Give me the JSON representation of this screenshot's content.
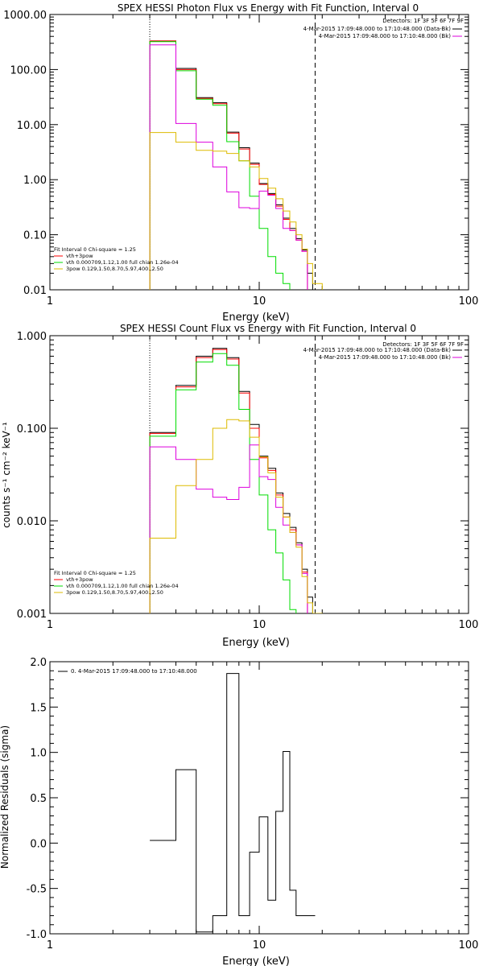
{
  "chart_data": [
    {
      "type": "line",
      "title": "SPEX HESSI Photon Flux vs Energy with Fit Function, Interval 0",
      "xlabel": "Energy (keV)",
      "ylabel": "",
      "xscale": "log",
      "yscale": "log",
      "xlim": [
        1,
        100
      ],
      "ylim": [
        0.01,
        1000
      ],
      "xticks": [
        "1",
        "10",
        "100"
      ],
      "yticks": [
        "0.01",
        "0.10",
        "1.00",
        "10.00",
        "100.00",
        "1000.00"
      ],
      "markers": [
        3.0,
        18.5
      ],
      "bin_edges": [
        3,
        4,
        5,
        6,
        7,
        8,
        9,
        10,
        11,
        12,
        13,
        14,
        15,
        16,
        17,
        18,
        20
      ],
      "series": [
        {
          "name": "",
          "color": "#000000",
          "values": [
            330,
            105,
            31,
            25,
            7.3,
            3.8,
            2.0,
            0.85,
            0.56,
            0.35,
            0.2,
            0.13,
            0.085,
            0.053,
            0.02,
            0.0
          ]
        },
        {
          "name": "",
          "color": "#ff0000",
          "values": [
            330,
            100,
            30,
            24,
            7.0,
            3.6,
            1.9,
            0.82,
            0.54,
            0.33,
            0.19,
            0.12,
            0.08,
            0.05,
            0.0,
            0.0
          ]
        },
        {
          "name": "",
          "color": "#00dd00",
          "values": [
            320,
            95,
            29,
            22.5,
            4.9,
            2.2,
            0.5,
            0.13,
            0.04,
            0.02,
            0.013,
            0.0,
            0.0,
            0.0,
            0.0,
            0.0
          ]
        },
        {
          "name": "",
          "color": "#dd00dd",
          "values": [
            280,
            10.5,
            4.8,
            1.7,
            0.6,
            0.31,
            0.3,
            0.62,
            0.52,
            0.3,
            0.13,
            0.12,
            0.08,
            0.05,
            0.0,
            0.0
          ]
        },
        {
          "name": "",
          "color": "#ddbb00",
          "values": [
            7.2,
            4.8,
            3.4,
            3.3,
            3.0,
            2.2,
            1.7,
            1.05,
            0.7,
            0.45,
            0.27,
            0.17,
            0.1,
            0.055,
            0.03,
            0.013
          ]
        }
      ],
      "detectors_text": "Detectors: 1F 3F 5F 6F 7F 9F",
      "legend_top": [
        {
          "label": "4-Mar-2015 17:09:48.000 to 17:10:48.000 (Data-Bk)",
          "color": "#000000"
        },
        {
          "label": "4-Mar-2015 17:09:48.000 to 17:10:48.000 (Bk)",
          "color": "#dd00dd"
        }
      ],
      "legend_bottom": [
        {
          "label": "Fit Interval 0   Chi-square = 1.25",
          "color": ""
        },
        {
          "label": "vth+3pow",
          "color": "#ff0000"
        },
        {
          "label": "vth 0.000709,1.12,1.00  full chian 1.26e-04",
          "color": "#00dd00"
        },
        {
          "label": "3pow 0.129,1.50,8.70,5.97,400.,2.50",
          "color": "#ddbb00"
        }
      ]
    },
    {
      "type": "line",
      "title": "SPEX HESSI Count Flux vs Energy with Fit Function, Interval 0",
      "xlabel": "Energy (keV)",
      "ylabel": "counts s⁻¹ cm⁻² keV⁻¹",
      "xscale": "log",
      "yscale": "log",
      "xlim": [
        1,
        100
      ],
      "ylim": [
        0.001,
        1.0
      ],
      "xticks": [
        "1",
        "10",
        "100"
      ],
      "yticks": [
        "0.001",
        "0.010",
        "0.100",
        "1.000"
      ],
      "markers": [
        3.0,
        18.5
      ],
      "bin_edges": [
        3,
        4,
        5,
        6,
        7,
        8,
        9,
        10,
        11,
        12,
        13,
        14,
        15,
        16,
        17,
        18,
        20
      ],
      "series": [
        {
          "name": "",
          "color": "#000000",
          "values": [
            0.09,
            0.29,
            0.6,
            0.73,
            0.58,
            0.25,
            0.11,
            0.05,
            0.037,
            0.02,
            0.012,
            0.0085,
            0.0058,
            0.003,
            0.0015,
            0.0
          ]
        },
        {
          "name": "",
          "color": "#ff0000",
          "values": [
            0.088,
            0.28,
            0.58,
            0.71,
            0.56,
            0.24,
            0.1,
            0.048,
            0.035,
            0.019,
            0.011,
            0.008,
            0.0055,
            0.0028,
            0.0,
            0.0
          ]
        },
        {
          "name": "",
          "color": "#00dd00",
          "values": [
            0.082,
            0.26,
            0.52,
            0.64,
            0.48,
            0.16,
            0.046,
            0.019,
            0.008,
            0.0045,
            0.0023,
            0.0011,
            0.0,
            0.0,
            0.0,
            0.0
          ]
        },
        {
          "name": "",
          "color": "#dd00dd",
          "values": [
            0.063,
            0.046,
            0.022,
            0.018,
            0.017,
            0.023,
            0.066,
            0.03,
            0.028,
            0.014,
            0.009,
            0.0075,
            0.0055,
            0.0027,
            0.0,
            0.0
          ]
        },
        {
          "name": "",
          "color": "#ddbb00",
          "values": [
            0.0065,
            0.024,
            0.046,
            0.1,
            0.124,
            0.12,
            0.08,
            0.049,
            0.033,
            0.018,
            0.011,
            0.0075,
            0.0052,
            0.0025,
            0.0013,
            0.001
          ]
        }
      ],
      "detectors_text": "Detectors: 1F 3F 5F 6F 7F 9F",
      "legend_top": [
        {
          "label": "4-Mar-2015 17:09:48.000 to 17:10:48.000 (Data-Bk)",
          "color": "#000000"
        },
        {
          "label": "4-Mar-2015 17:09:48.000 to 17:10:48.000 (Bk)",
          "color": "#dd00dd"
        }
      ],
      "legend_bottom": [
        {
          "label": "Fit Interval 0   Chi-square = 1.25",
          "color": ""
        },
        {
          "label": "vth+3pow",
          "color": "#ff0000"
        },
        {
          "label": "vth 0.000709,1.12,1.00  full chian 1.26e-04",
          "color": "#00dd00"
        },
        {
          "label": "3pow 0.129,1.50,8.70,5.97,400.,2.50",
          "color": "#ddbb00"
        }
      ]
    },
    {
      "type": "line",
      "title": "",
      "xlabel": "Energy (keV)",
      "ylabel": "Normalized Residuals (sigma)",
      "xscale": "log",
      "yscale": "linear",
      "xlim": [
        1,
        100
      ],
      "ylim": [
        -1.0,
        2.0
      ],
      "xticks": [
        "1",
        "10",
        "100"
      ],
      "yticks": [
        "-1.0",
        "-0.5",
        "0.0",
        "0.5",
        "1.0",
        "1.5",
        "2.0"
      ],
      "markers": [],
      "bin_edges": [
        3,
        4,
        5,
        6,
        7,
        8,
        9,
        10,
        11,
        12,
        13,
        14,
        15,
        16,
        17,
        18.5
      ],
      "series": [
        {
          "name": "",
          "color": "#000000",
          "values": [
            0.03,
            0.81,
            -0.98,
            -0.8,
            1.87,
            -0.8,
            -0.1,
            0.29,
            -0.63,
            0.35,
            1.01,
            -0.52,
            -0.8,
            -0.8,
            -0.8
          ]
        }
      ],
      "legend_top": [
        {
          "label": "0. 4-Mar-2015 17:09:48.000 to 17:10:48.000",
          "color": "#000000"
        }
      ]
    }
  ]
}
